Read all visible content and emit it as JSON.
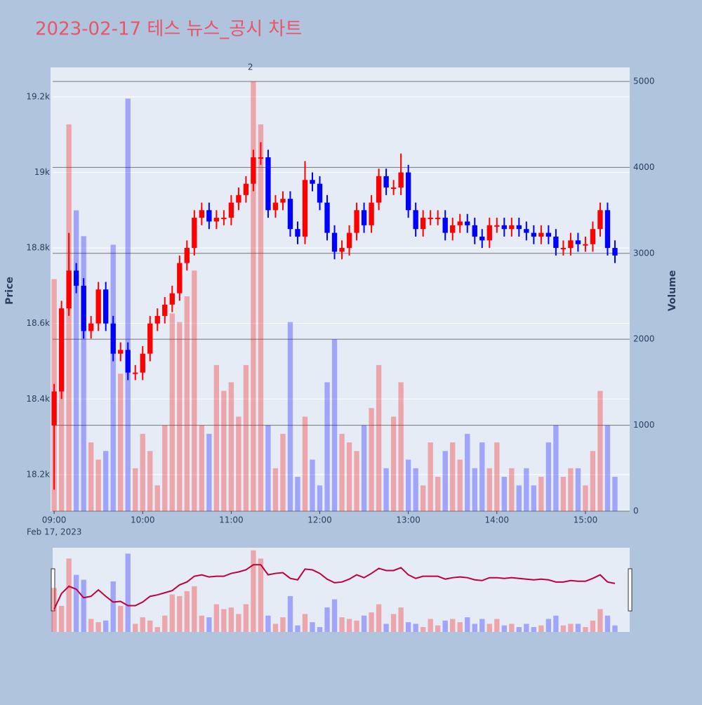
{
  "chart_data": {
    "type": "candlestick",
    "title": "2023-02-17 테스 뉴스_공시 차트",
    "y_label": "Price",
    "y2_label": "Volume",
    "x_date_label": "Feb 17, 2023",
    "up_color": "#ff0000",
    "down_color": "#0000ff",
    "xlim": [
      "08:59",
      "15:30"
    ],
    "xticks": [
      "09:00",
      "10:00",
      "11:00",
      "12:00",
      "13:00",
      "14:00",
      "15:00"
    ],
    "ylim": [
      18103,
      19278
    ],
    "yticks": [
      {
        "value": 18200,
        "label": "18.2k"
      },
      {
        "value": 18400,
        "label": "18.4k"
      },
      {
        "value": 18600,
        "label": "18.6k"
      },
      {
        "value": 18800,
        "label": "18.8k"
      },
      {
        "value": 19000,
        "label": "19k"
      },
      {
        "value": 19200,
        "label": "19.2k"
      }
    ],
    "y2lim": [
      0,
      5163
    ],
    "y2ticks": [
      0,
      1000,
      2000,
      3000,
      4000,
      5000
    ],
    "annotations": [
      {
        "text": "2",
        "x": "11:13"
      }
    ],
    "x": [
      "09:00",
      "09:05",
      "09:10",
      "09:15",
      "09:20",
      "09:25",
      "09:30",
      "09:35",
      "09:40",
      "09:45",
      "09:50",
      "09:55",
      "10:00",
      "10:05",
      "10:10",
      "10:15",
      "10:20",
      "10:25",
      "10:30",
      "10:35",
      "10:40",
      "10:45",
      "10:50",
      "10:55",
      "11:00",
      "11:05",
      "11:10",
      "11:15",
      "11:20",
      "11:25",
      "11:30",
      "11:35",
      "11:40",
      "11:45",
      "11:50",
      "11:55",
      "12:00",
      "12:05",
      "12:10",
      "12:15",
      "12:20",
      "12:25",
      "12:30",
      "12:35",
      "12:40",
      "12:45",
      "12:50",
      "12:55",
      "13:00",
      "13:05",
      "13:10",
      "13:15",
      "13:20",
      "13:25",
      "13:30",
      "13:35",
      "13:40",
      "13:45",
      "13:50",
      "13:55",
      "14:00",
      "14:05",
      "14:10",
      "14:15",
      "14:20",
      "14:25",
      "14:30",
      "14:35",
      "14:40",
      "14:45",
      "14:50",
      "14:55",
      "15:00",
      "15:05",
      "15:10",
      "15:15",
      "15:20"
    ],
    "open": [
      18330,
      18420,
      18640,
      18740,
      18700,
      18580,
      18600,
      18690,
      18600,
      18520,
      18530,
      18470,
      18470,
      18520,
      18600,
      18620,
      18650,
      18680,
      18760,
      18800,
      18880,
      18900,
      18870,
      18880,
      18880,
      18920,
      18940,
      18970,
      19040,
      19040,
      18900,
      18920,
      18930,
      18850,
      18830,
      18980,
      18970,
      18920,
      18840,
      18790,
      18800,
      18840,
      18900,
      18860,
      18920,
      18990,
      18960,
      18960,
      19000,
      18900,
      18850,
      18880,
      18880,
      18880,
      18840,
      18860,
      18870,
      18860,
      18830,
      18820,
      18860,
      18860,
      18850,
      18860,
      18850,
      18840,
      18830,
      18840,
      18830,
      18800,
      18800,
      18820,
      18810,
      18810,
      18850,
      18900,
      18800
    ],
    "high": [
      18440,
      18660,
      18840,
      18760,
      18720,
      18620,
      18710,
      18710,
      18620,
      18550,
      18550,
      18490,
      18540,
      18620,
      18640,
      18670,
      18700,
      18780,
      18820,
      18900,
      18920,
      18920,
      18900,
      18900,
      18940,
      18960,
      18990,
      19060,
      19080,
      19060,
      18940,
      18950,
      18950,
      18870,
      19030,
      19000,
      18990,
      18940,
      18860,
      18820,
      18860,
      18920,
      18920,
      18940,
      19010,
      19010,
      18980,
      19050,
      19020,
      18920,
      18900,
      18900,
      18900,
      18900,
      18880,
      18890,
      18890,
      18880,
      18850,
      18880,
      18880,
      18880,
      18880,
      18880,
      18870,
      18860,
      18860,
      18860,
      18850,
      18820,
      18840,
      18840,
      18830,
      18870,
      18920,
      18920,
      18820
    ],
    "low": [
      18160,
      18400,
      18620,
      18680,
      18560,
      18560,
      18580,
      18580,
      18500,
      18500,
      18450,
      18450,
      18450,
      18500,
      18580,
      18600,
      18630,
      18660,
      18740,
      18780,
      18860,
      18850,
      18850,
      18860,
      18860,
      18900,
      18920,
      18950,
      19020,
      18880,
      18880,
      18900,
      18830,
      18810,
      18810,
      18950,
      18900,
      18820,
      18770,
      18770,
      18780,
      18820,
      18840,
      18840,
      18900,
      18940,
      18940,
      18940,
      18880,
      18830,
      18830,
      18860,
      18860,
      18820,
      18820,
      18840,
      18840,
      18810,
      18800,
      18800,
      18840,
      18830,
      18830,
      18830,
      18820,
      18810,
      18810,
      18810,
      18780,
      18780,
      18780,
      18790,
      18790,
      18790,
      18830,
      18780,
      18760
    ],
    "close": [
      18420,
      18640,
      18740,
      18700,
      18580,
      18600,
      18690,
      18600,
      18520,
      18530,
      18470,
      18470,
      18520,
      18600,
      18620,
      18650,
      18680,
      18760,
      18800,
      18880,
      18900,
      18870,
      18880,
      18880,
      18920,
      18940,
      18970,
      19040,
      19040,
      18900,
      18920,
      18930,
      18850,
      18830,
      18980,
      18970,
      18920,
      18840,
      18790,
      18800,
      18840,
      18900,
      18860,
      18920,
      18990,
      18960,
      18960,
      19000,
      18900,
      18850,
      18880,
      18880,
      18880,
      18840,
      18860,
      18870,
      18860,
      18830,
      18820,
      18860,
      18860,
      18850,
      18860,
      18850,
      18840,
      18830,
      18840,
      18830,
      18800,
      18800,
      18820,
      18810,
      18810,
      18850,
      18900,
      18800,
      18780
    ],
    "volume": [
      2700,
      1600,
      4500,
      3500,
      3200,
      800,
      600,
      700,
      3100,
      1600,
      4800,
      500,
      900,
      700,
      300,
      1000,
      2300,
      2200,
      2500,
      2800,
      1000,
      900,
      1700,
      1400,
      1500,
      1100,
      1700,
      5000,
      4500,
      1000,
      500,
      900,
      2200,
      400,
      1100,
      600,
      300,
      1500,
      2000,
      900,
      800,
      700,
      1000,
      1200,
      1700,
      500,
      1100,
      1500,
      600,
      500,
      300,
      800,
      400,
      700,
      800,
      600,
      900,
      500,
      800,
      500,
      800,
      400,
      500,
      300,
      500,
      300,
      400,
      800,
      1000,
      400,
      500,
      500,
      300,
      700,
      1400,
      1000,
      400
    ]
  }
}
